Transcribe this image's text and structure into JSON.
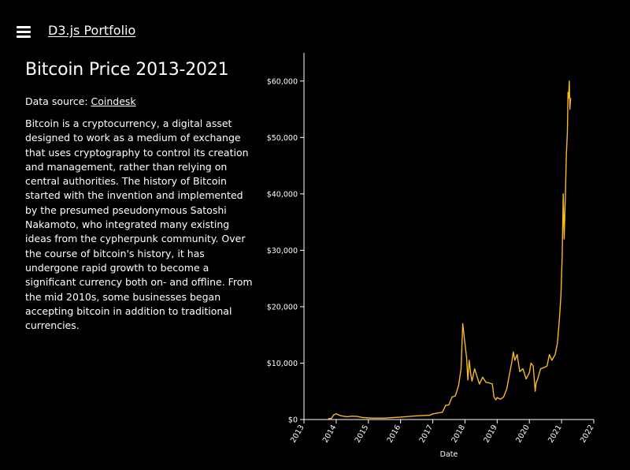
{
  "nav": {
    "brand": "D3.js Portfolio",
    "menu_icon": "hamburger-menu-icon"
  },
  "info": {
    "title": "Bitcoin Price 2013-2021",
    "source_label": "Data source: ",
    "source_link": "Coindesk",
    "description": "Bitcoin is a cryptocurrency, a digital asset designed to work as a medium of exchange that uses cryptography to control its creation and management, rather than relying on central authorities. The history of Bitcoin started with the invention and implemented by the presumed pseudonymous Satoshi Nakamoto, who integrated many existing ideas from the cypherpunk community. Over the course of bitcoin's history, it has undergone rapid growth to become a significant currency both on- and offline. From the mid 2010s, some businesses began accepting bitcoin in addition to traditional currencies."
  },
  "colors": {
    "line": "#f7b924",
    "axis": "#ffffff",
    "background": "#000000"
  },
  "chart_data": {
    "type": "line",
    "xlabel": "Date",
    "ylabel": "",
    "xlim": [
      2013,
      2022
    ],
    "ylim": [
      0,
      65000
    ],
    "x_ticks": [
      "2013",
      "2014",
      "2015",
      "2016",
      "2017",
      "2018",
      "2019",
      "2020",
      "2021",
      "2022"
    ],
    "y_ticks": [
      "$0",
      "$10,000",
      "$20,000",
      "$30,000",
      "$40,000",
      "$50,000",
      "$60,000"
    ],
    "y_tick_values": [
      0,
      10000,
      20000,
      30000,
      40000,
      50000,
      60000
    ],
    "grid": false,
    "series": [
      {
        "x": [
          2013.75,
          2013.85,
          2013.92,
          2014.0,
          2014.08,
          2014.2,
          2014.35,
          2014.5,
          2014.65,
          2014.8,
          2015.0,
          2015.1,
          2015.5,
          2015.85,
          2016.0,
          2016.5,
          2016.9,
          2017.0,
          2017.15,
          2017.3,
          2017.4,
          2017.5,
          2017.6,
          2017.7,
          2017.8,
          2017.88,
          2017.93,
          2017.97,
          2018.0,
          2018.05,
          2018.09,
          2018.13,
          2018.18,
          2018.22,
          2018.3,
          2018.38,
          2018.45,
          2018.55,
          2018.65,
          2018.75,
          2018.85,
          2018.9,
          2018.96,
          2019.0,
          2019.1,
          2019.2,
          2019.3,
          2019.38,
          2019.45,
          2019.5,
          2019.55,
          2019.62,
          2019.7,
          2019.8,
          2019.9,
          2020.0,
          2020.05,
          2020.12,
          2020.18,
          2020.21,
          2020.25,
          2020.35,
          2020.45,
          2020.55,
          2020.62,
          2020.7,
          2020.8,
          2020.87,
          2020.93,
          2020.98,
          2021.02,
          2021.05,
          2021.08,
          2021.1,
          2021.12,
          2021.15,
          2021.18,
          2021.2,
          2021.22,
          2021.24,
          2021.26,
          2021.28
        ],
        "values": [
          130,
          200,
          800,
          1000,
          800,
          600,
          500,
          600,
          550,
          380,
          300,
          250,
          250,
          380,
          430,
          660,
          760,
          1000,
          1150,
          1300,
          2500,
          2600,
          4000,
          4200,
          6000,
          9000,
          17000,
          15000,
          13500,
          11000,
          7000,
          10500,
          8000,
          6800,
          9000,
          7500,
          6300,
          7500,
          6600,
          6500,
          6300,
          4000,
          3500,
          3900,
          3600,
          4000,
          5500,
          8000,
          10000,
          12000,
          10500,
          11500,
          8500,
          9000,
          7200,
          8300,
          10000,
          9500,
          5000,
          6500,
          7000,
          9000,
          9200,
          9500,
          11500,
          10500,
          11500,
          13500,
          17500,
          22000,
          29000,
          40000,
          32000,
          36000,
          40000,
          47000,
          51000,
          58000,
          57000,
          60000,
          55000,
          57000
        ]
      }
    ]
  }
}
